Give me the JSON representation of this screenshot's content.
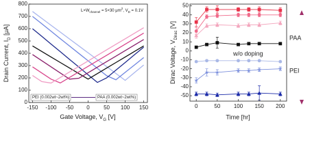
{
  "chart_data": [
    {
      "type": "line",
      "xlabel": [
        "Gate Voltage, V",
        "G",
        " [V]"
      ],
      "ylabel": [
        "Drain Current, I",
        "D",
        " [μA]"
      ],
      "annotation": [
        "L×W",
        "channel",
        " = 5×30 μm",
        "2",
        ", V",
        "D",
        " = 0.1V"
      ],
      "legend_labels": [
        "PEI (0.002wt~2wt%)",
        "PAA (0.002wt~2wt%)"
      ],
      "xlim": [
        -160,
        160
      ],
      "xticks": [
        -150,
        -100,
        -50,
        0,
        50,
        100,
        150
      ],
      "ylim": [
        0,
        800
      ],
      "yticks": [
        0,
        100,
        200,
        300,
        400,
        500,
        600,
        700,
        800
      ],
      "x": [
        -150,
        -125,
        -100,
        -75,
        -50,
        -25,
        0,
        25,
        50,
        75,
        100,
        125,
        150
      ],
      "series": [
        {
          "color": "#a9b6ee",
          "values": [
            740,
            684,
            628,
            572,
            516,
            460,
            404,
            348,
            292,
            236,
            180,
            243,
            305
          ]
        },
        {
          "color": "#6f86e0",
          "values": [
            700,
            640,
            580,
            519,
            459,
            399,
            339,
            278,
            218,
            185,
            245,
            305,
            365
          ]
        },
        {
          "color": "#1f2b8c",
          "values": [
            600,
            538,
            475,
            413,
            350,
            288,
            225,
            163,
            200,
            263,
            325,
            388,
            450
          ]
        },
        {
          "color": "#111111",
          "values": [
            460,
            415,
            370,
            325,
            280,
            235,
            190,
            235,
            280,
            325,
            370,
            415,
            460
          ]
        },
        {
          "color": "#8a1f6a",
          "values": [
            390,
            340,
            290,
            240,
            190,
            197,
            242,
            287,
            332,
            377,
            422,
            467,
            512
          ]
        },
        {
          "color": "#d9468c",
          "values": [
            290,
            240,
            190,
            159,
            204,
            249,
            294,
            339,
            384,
            429,
            474,
            519,
            564
          ]
        },
        {
          "color": "#f09cc4",
          "values": [
            220,
            170,
            158,
            203,
            248,
            293,
            338,
            383,
            428,
            473,
            518,
            563,
            608
          ]
        }
      ]
    },
    {
      "type": "line",
      "xlabel": "Time [hr]",
      "ylabel": [
        "Dirac Voltage, V",
        "Dirac",
        " [V]"
      ],
      "labels": [
        "PAA",
        "PEI"
      ],
      "xlim": [
        -15,
        215
      ],
      "xticks": [
        0,
        50,
        100,
        150,
        200
      ],
      "ylim": [
        -56,
        52
      ],
      "yticks": [
        -50,
        -40,
        -30,
        -20,
        -10,
        0,
        10,
        20,
        30,
        40,
        50
      ],
      "x": [
        0,
        25,
        50,
        100,
        125,
        150,
        200
      ],
      "series": [
        {
          "color": "#e8344a",
          "marker": "square",
          "values": [
            32,
            46,
            46,
            46,
            46,
            46,
            45
          ],
          "errors": [
            5,
            3,
            4,
            2,
            2,
            3,
            3
          ]
        },
        {
          "color": "#f06a8a",
          "marker": "circle",
          "values": [
            22,
            38,
            39,
            40,
            40,
            40,
            40
          ],
          "errors": [
            4,
            2,
            2,
            2,
            2,
            2,
            2
          ]
        },
        {
          "color": "#f3a6bd",
          "marker": "triangle",
          "values": [
            17,
            28,
            29,
            28,
            29,
            29,
            31
          ],
          "errors": [
            3,
            2,
            2,
            2,
            2,
            2,
            2
          ]
        },
        {
          "name": "w/o doping",
          "color": "#111111",
          "marker": "square",
          "values": [
            4,
            7,
            9,
            7,
            8,
            8,
            8
          ],
          "errors": [
            1,
            1,
            6,
            1,
            1,
            1,
            1
          ]
        },
        {
          "color": "#a9b8e6",
          "marker": "circle",
          "values": [
            -12,
            -11,
            -11,
            -11,
            -11,
            -11,
            -12
          ],
          "errors": [
            1,
            1,
            1,
            1,
            1,
            1,
            1
          ]
        },
        {
          "color": "#7b8fdc",
          "marker": "star",
          "values": [
            -33,
            -24,
            -24,
            -22,
            -22,
            -21,
            -20
          ],
          "errors": [
            3,
            4,
            3,
            2,
            2,
            2,
            2
          ]
        },
        {
          "color": "#1a2aa8",
          "marker": "triangle",
          "values": [
            -48,
            -48,
            -49,
            -48,
            -48,
            -47,
            -48
          ],
          "errors": [
            2,
            2,
            2,
            2,
            2,
            8,
            2
          ]
        }
      ]
    }
  ]
}
